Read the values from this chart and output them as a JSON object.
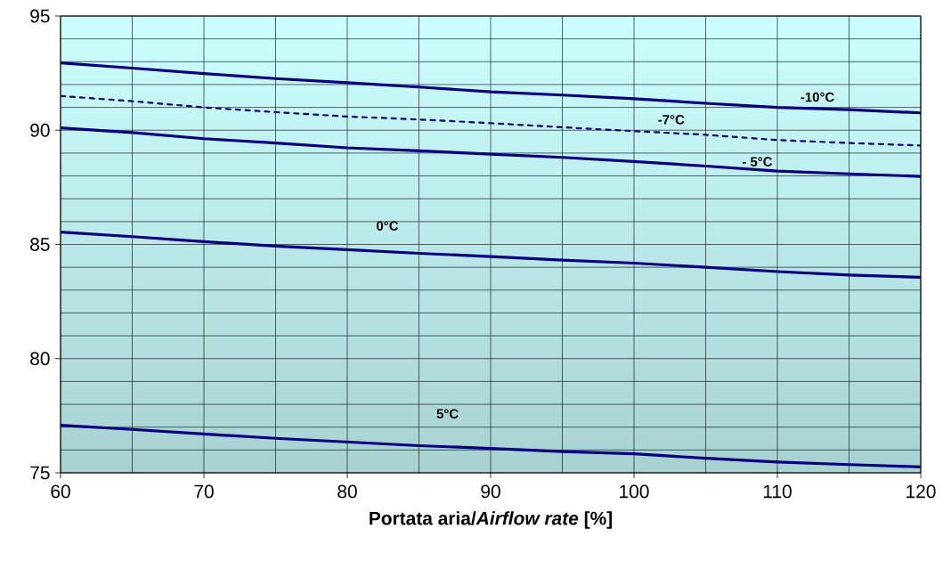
{
  "chart_data": {
    "type": "line",
    "xlabel": "**Portata aria/*Airflow rate* [%]**",
    "x": [
      60,
      65,
      70,
      75,
      80,
      85,
      90,
      95,
      100,
      105,
      110,
      115,
      120
    ],
    "series": [
      {
        "name": "-10°C",
        "color": "#000080",
        "line_style": "solid",
        "values": [
          92.95,
          92.72,
          92.48,
          92.26,
          92.08,
          91.89,
          91.68,
          91.54,
          91.38,
          91.18,
          91.0,
          90.9,
          90.76
        ]
      },
      {
        "name": "-7°C",
        "color": "#000080",
        "line_style": "dotted",
        "values": [
          91.5,
          91.27,
          91.0,
          90.79,
          90.6,
          90.47,
          90.31,
          90.13,
          89.96,
          89.8,
          89.57,
          89.44,
          89.33
        ]
      },
      {
        "name": "- 5°C",
        "color": "#000080",
        "line_style": "solid",
        "values": [
          90.1,
          89.9,
          89.63,
          89.44,
          89.23,
          89.1,
          88.95,
          88.81,
          88.63,
          88.43,
          88.21,
          88.09,
          87.98
        ]
      },
      {
        "name": "0°C",
        "color": "#000080",
        "line_style": "solid",
        "values": [
          85.54,
          85.34,
          85.12,
          84.93,
          84.77,
          84.61,
          84.47,
          84.31,
          84.18,
          84.0,
          83.81,
          83.66,
          83.56
        ]
      },
      {
        "name": "5°C",
        "color": "#000080",
        "line_style": "solid",
        "values": [
          77.08,
          76.9,
          76.7,
          76.51,
          76.35,
          76.19,
          76.07,
          75.93,
          75.83,
          75.64,
          75.47,
          75.36,
          75.26
        ]
      }
    ],
    "xlim": [
      60,
      120
    ],
    "ylim": [
      75,
      95
    ],
    "xticks": [
      60,
      {
        "value": 65,
        "label": null
      },
      70,
      {
        "value": 75,
        "label": null
      },
      80,
      {
        "value": 85,
        "label": null
      },
      90,
      {
        "value": 95,
        "label": null
      },
      100,
      {
        "value": 105,
        "label": null
      },
      110,
      {
        "value": 115,
        "label": null
      },
      120
    ],
    "yticks": [
      75,
      {
        "value": 76,
        "label": null
      },
      {
        "value": 77,
        "label": null
      },
      {
        "value": 78,
        "label": null
      },
      {
        "value": 79,
        "label": null
      },
      80,
      {
        "value": 81,
        "label": null
      },
      {
        "value": 82,
        "label": null
      },
      {
        "value": 83,
        "label": null
      },
      {
        "value": 84,
        "label": null
      },
      85,
      {
        "value": 86,
        "label": null
      },
      {
        "value": 87,
        "label": null
      },
      {
        "value": 88,
        "label": null
      },
      {
        "value": 89,
        "label": null
      },
      90,
      {
        "value": 91,
        "label": null
      },
      {
        "value": 92,
        "label": null
      },
      {
        "value": 93,
        "label": null
      },
      {
        "value": 94,
        "label": null
      },
      95
    ],
    "grid": true,
    "legend": false,
    "marker": "none"
  }
}
